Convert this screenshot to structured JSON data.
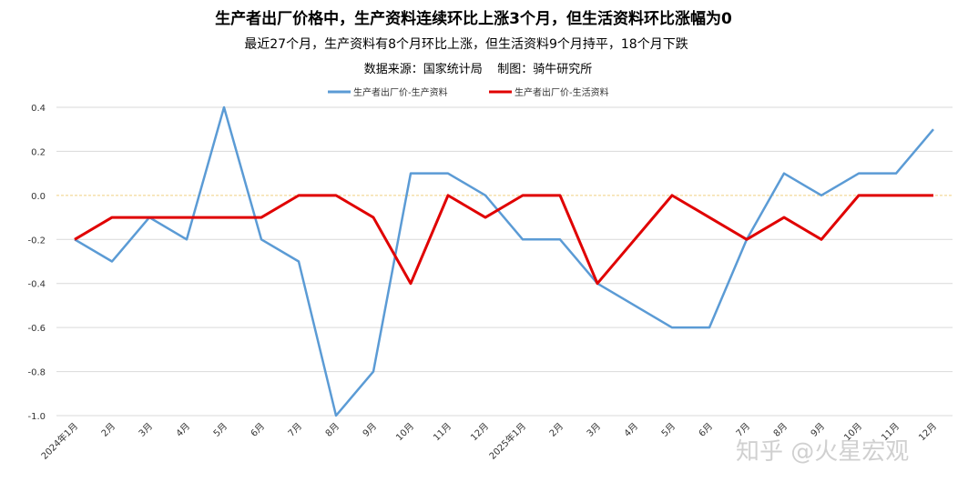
{
  "chart_data": {
    "type": "line",
    "title": "生产者出厂价格中，生产资料连续环比上涨3个月，但生活资料环比涨幅为0",
    "subtitle": "最近27个月，生产资料有8个月环比上涨，但生活资料9个月持平，18个月下跌",
    "source": "数据来源：国家统计局    制图：骑牛研究所",
    "watermark": "知乎 @火星宏观",
    "categories": [
      "2024年1月",
      "2月",
      "3月",
      "4月",
      "5月",
      "6月",
      "7月",
      "8月",
      "9月",
      "10月",
      "11月",
      "12月",
      "2025年1月",
      "2月",
      "3月",
      "4月",
      "5月",
      "6月",
      "7月",
      "8月",
      "9月",
      "10月",
      "11月",
      "12月"
    ],
    "series": [
      {
        "name": "生产者出厂价-生产资料",
        "color": "#5b9bd5",
        "values": [
          -0.2,
          -0.3,
          -0.1,
          -0.2,
          0.4,
          -0.2,
          -0.3,
          -1.0,
          -0.8,
          0.1,
          0.1,
          0.0,
          -0.2,
          -0.2,
          -0.4,
          -0.5,
          -0.6,
          -0.6,
          -0.2,
          0.1,
          0.0,
          0.1,
          0.1,
          0.3
        ]
      },
      {
        "name": "生产者出厂价-生活资料",
        "color": "#e00000",
        "values": [
          -0.2,
          -0.1,
          -0.1,
          -0.1,
          -0.1,
          -0.1,
          0.0,
          0.0,
          -0.1,
          -0.4,
          0.0,
          -0.1,
          0.0,
          0.0,
          -0.4,
          -0.2,
          0.0,
          -0.1,
          -0.2,
          -0.1,
          -0.2,
          0.0,
          0.0,
          0.0
        ]
      }
    ],
    "ylim": [
      -1.0,
      0.4
    ],
    "yticks": [
      0.4,
      0.2,
      {
        "value": 0,
        "label": "0.0"
      },
      -0.2,
      -0.4,
      -0.6,
      -0.8,
      {
        "value": -1.0,
        "label": "-1.0"
      }
    ],
    "grid": true,
    "legend": "top"
  }
}
